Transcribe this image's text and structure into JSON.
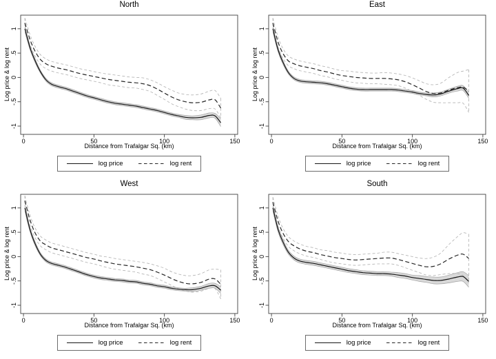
{
  "figure": {
    "background": "#ffffff"
  },
  "colors": {
    "frame": "#3f3f3f",
    "tick": "#3f3f3f",
    "text": "#000000",
    "price_line": "#151515",
    "price_band_fill": "#d9d9d9",
    "price_band_edge": "#a3a3a3",
    "rent_line": "#232323",
    "rent_ci": "#b3b3b3",
    "legend_border": "#6b6b6b",
    "background": "#ffffff"
  },
  "legend": {
    "price_label": "log price",
    "rent_label": "log rent"
  },
  "axes": {
    "xlabel": "Distance from Trafalgar Sq. (km)",
    "ylabel": "Log price & log rent",
    "x_tick_labels": [
      "0",
      "50",
      "100",
      "150"
    ],
    "y_tick_labels": [
      "-1",
      "-.5",
      "0",
      ".5",
      "1"
    ]
  },
  "chart_data": [
    {
      "type": "line",
      "title": "North",
      "xlabel": "Distance from Trafalgar Sq. (km)",
      "ylabel": "Log price & log rent",
      "xlim": [
        -2,
        152
      ],
      "ylim": [
        -1.17,
        1.28
      ],
      "x_ticks": [
        0,
        50,
        100,
        150
      ],
      "x_tick_labels": [
        "0",
        "50",
        "100",
        "150"
      ],
      "y_ticks": [
        -1,
        -0.5,
        0,
        0.5,
        1
      ],
      "y_tick_labels": [
        "-1",
        "-.5",
        "0",
        ".5",
        "1"
      ],
      "grid": false,
      "legend_position": "bottom",
      "x": [
        1,
        3,
        5,
        8,
        12,
        16,
        20,
        25,
        30,
        35,
        40,
        45,
        50,
        55,
        60,
        65,
        70,
        75,
        80,
        85,
        90,
        95,
        100,
        105,
        110,
        115,
        120,
        126,
        132,
        136,
        140
      ],
      "series": [
        {
          "name": "log price",
          "style": "solid",
          "values": [
            1.0,
            0.78,
            0.58,
            0.36,
            0.12,
            -0.05,
            -0.14,
            -0.19,
            -0.23,
            -0.28,
            -0.33,
            -0.38,
            -0.42,
            -0.46,
            -0.5,
            -0.53,
            -0.55,
            -0.57,
            -0.59,
            -0.62,
            -0.65,
            -0.68,
            -0.72,
            -0.76,
            -0.79,
            -0.82,
            -0.83,
            -0.82,
            -0.78,
            -0.79,
            -0.93
          ],
          "ci_halfwidth": [
            0.07,
            0.05,
            0.04,
            0.04,
            0.03,
            0.03,
            0.03,
            0.03,
            0.03,
            0.03,
            0.03,
            0.03,
            0.03,
            0.03,
            0.03,
            0.03,
            0.03,
            0.03,
            0.03,
            0.03,
            0.03,
            0.03,
            0.03,
            0.03,
            0.03,
            0.04,
            0.04,
            0.05,
            0.05,
            0.05,
            0.08
          ]
        },
        {
          "name": "log rent",
          "style": "dashed",
          "values": [
            1.12,
            0.93,
            0.75,
            0.55,
            0.37,
            0.28,
            0.23,
            0.19,
            0.16,
            0.12,
            0.08,
            0.05,
            0.02,
            -0.01,
            -0.04,
            -0.06,
            -0.08,
            -0.1,
            -0.11,
            -0.13,
            -0.17,
            -0.24,
            -0.32,
            -0.4,
            -0.46,
            -0.5,
            -0.52,
            -0.51,
            -0.46,
            -0.46,
            -0.63
          ],
          "ci_halfwidth": [
            0.1,
            0.1,
            0.1,
            0.1,
            0.1,
            0.1,
            0.1,
            0.1,
            0.1,
            0.1,
            0.1,
            0.1,
            0.1,
            0.1,
            0.11,
            0.11,
            0.11,
            0.11,
            0.11,
            0.12,
            0.12,
            0.13,
            0.13,
            0.14,
            0.14,
            0.15,
            0.16,
            0.17,
            0.18,
            0.19,
            0.2
          ]
        }
      ]
    },
    {
      "type": "line",
      "title": "East",
      "xlabel": "Distance from Trafalgar Sq. (km)",
      "ylabel": "Log price & log rent",
      "xlim": [
        -2,
        152
      ],
      "ylim": [
        -1.17,
        1.28
      ],
      "x_ticks": [
        0,
        50,
        100,
        150
      ],
      "x_tick_labels": [
        "0",
        "50",
        "100",
        "150"
      ],
      "y_ticks": [
        -1,
        -0.5,
        0,
        0.5,
        1
      ],
      "y_tick_labels": [
        "-1",
        "-.5",
        "0",
        ".5",
        "1"
      ],
      "grid": false,
      "legend_position": "bottom",
      "x": [
        1,
        3,
        5,
        8,
        12,
        16,
        20,
        25,
        30,
        35,
        40,
        45,
        50,
        55,
        60,
        65,
        70,
        75,
        80,
        85,
        90,
        95,
        100,
        105,
        110,
        115,
        120,
        126,
        132,
        136,
        140
      ],
      "series": [
        {
          "name": "log price",
          "style": "solid",
          "values": [
            1.0,
            0.75,
            0.54,
            0.32,
            0.1,
            -0.02,
            -0.07,
            -0.09,
            -0.1,
            -0.11,
            -0.13,
            -0.16,
            -0.19,
            -0.22,
            -0.24,
            -0.25,
            -0.25,
            -0.25,
            -0.25,
            -0.25,
            -0.26,
            -0.28,
            -0.3,
            -0.33,
            -0.35,
            -0.36,
            -0.34,
            -0.28,
            -0.23,
            -0.22,
            -0.37
          ],
          "ci_halfwidth": [
            0.07,
            0.05,
            0.04,
            0.04,
            0.03,
            0.03,
            0.03,
            0.03,
            0.03,
            0.03,
            0.03,
            0.03,
            0.03,
            0.03,
            0.03,
            0.03,
            0.03,
            0.03,
            0.03,
            0.03,
            0.03,
            0.03,
            0.03,
            0.03,
            0.03,
            0.04,
            0.04,
            0.04,
            0.05,
            0.05,
            0.06
          ]
        },
        {
          "name": "log rent",
          "style": "dashed",
          "values": [
            1.12,
            0.9,
            0.7,
            0.5,
            0.34,
            0.28,
            0.24,
            0.21,
            0.18,
            0.14,
            0.11,
            0.07,
            0.04,
            0.02,
            0.0,
            -0.01,
            -0.02,
            -0.02,
            -0.02,
            -0.03,
            -0.05,
            -0.09,
            -0.15,
            -0.22,
            -0.29,
            -0.33,
            -0.32,
            -0.26,
            -0.21,
            -0.2,
            -0.28
          ],
          "ci_halfwidth": [
            0.1,
            0.1,
            0.1,
            0.1,
            0.1,
            0.1,
            0.1,
            0.1,
            0.1,
            0.1,
            0.1,
            0.1,
            0.1,
            0.11,
            0.11,
            0.11,
            0.11,
            0.11,
            0.12,
            0.12,
            0.12,
            0.13,
            0.14,
            0.15,
            0.16,
            0.18,
            0.2,
            0.26,
            0.31,
            0.33,
            0.44
          ]
        }
      ]
    },
    {
      "type": "line",
      "title": "West",
      "xlabel": "Distance from Trafalgar Sq. (km)",
      "ylabel": "Log price & log rent",
      "xlim": [
        -2,
        152
      ],
      "ylim": [
        -1.17,
        1.28
      ],
      "x_ticks": [
        0,
        50,
        100,
        150
      ],
      "x_tick_labels": [
        "0",
        "50",
        "100",
        "150"
      ],
      "y_ticks": [
        -1,
        -0.5,
        0,
        0.5,
        1
      ],
      "y_tick_labels": [
        "-1",
        "-.5",
        "0",
        ".5",
        "1"
      ],
      "grid": false,
      "legend_position": "bottom",
      "x": [
        1,
        3,
        5,
        8,
        12,
        16,
        20,
        25,
        30,
        35,
        40,
        45,
        50,
        55,
        60,
        65,
        70,
        75,
        80,
        85,
        90,
        95,
        100,
        105,
        110,
        115,
        120,
        126,
        132,
        136,
        140
      ],
      "series": [
        {
          "name": "log price",
          "style": "solid",
          "values": [
            1.0,
            0.74,
            0.52,
            0.28,
            0.05,
            -0.08,
            -0.14,
            -0.18,
            -0.22,
            -0.27,
            -0.32,
            -0.37,
            -0.41,
            -0.44,
            -0.46,
            -0.48,
            -0.49,
            -0.51,
            -0.52,
            -0.55,
            -0.57,
            -0.6,
            -0.62,
            -0.65,
            -0.67,
            -0.68,
            -0.68,
            -0.65,
            -0.6,
            -0.6,
            -0.69
          ],
          "ci_halfwidth": [
            0.07,
            0.05,
            0.04,
            0.04,
            0.03,
            0.03,
            0.03,
            0.03,
            0.03,
            0.03,
            0.03,
            0.03,
            0.03,
            0.03,
            0.03,
            0.03,
            0.03,
            0.03,
            0.03,
            0.03,
            0.03,
            0.03,
            0.03,
            0.03,
            0.03,
            0.03,
            0.04,
            0.04,
            0.05,
            0.05,
            0.07
          ]
        },
        {
          "name": "log rent",
          "style": "dashed",
          "values": [
            1.15,
            0.92,
            0.72,
            0.5,
            0.32,
            0.24,
            0.18,
            0.14,
            0.1,
            0.06,
            0.02,
            -0.02,
            -0.05,
            -0.09,
            -0.12,
            -0.15,
            -0.17,
            -0.19,
            -0.21,
            -0.24,
            -0.27,
            -0.32,
            -0.38,
            -0.45,
            -0.51,
            -0.55,
            -0.56,
            -0.53,
            -0.46,
            -0.46,
            -0.57
          ],
          "ci_halfwidth": [
            0.1,
            0.1,
            0.1,
            0.1,
            0.1,
            0.1,
            0.1,
            0.1,
            0.1,
            0.1,
            0.1,
            0.1,
            0.1,
            0.1,
            0.11,
            0.11,
            0.11,
            0.11,
            0.11,
            0.12,
            0.12,
            0.13,
            0.14,
            0.14,
            0.15,
            0.16,
            0.17,
            0.18,
            0.19,
            0.2,
            0.3
          ]
        }
      ]
    },
    {
      "type": "line",
      "title": "South",
      "xlabel": "Distance from Trafalgar Sq. (km)",
      "ylabel": "Log price & log rent",
      "xlim": [
        -2,
        152
      ],
      "ylim": [
        -1.17,
        1.28
      ],
      "x_ticks": [
        0,
        50,
        100,
        150
      ],
      "x_tick_labels": [
        "0",
        "50",
        "100",
        "150"
      ],
      "y_ticks": [
        -1,
        -0.5,
        0,
        0.5,
        1
      ],
      "y_tick_labels": [
        "-1",
        "-.5",
        "0",
        ".5",
        "1"
      ],
      "grid": false,
      "legend_position": "bottom",
      "x": [
        1,
        3,
        5,
        8,
        12,
        16,
        20,
        25,
        30,
        35,
        40,
        45,
        50,
        55,
        60,
        65,
        70,
        75,
        80,
        85,
        90,
        95,
        100,
        105,
        110,
        115,
        120,
        126,
        132,
        136,
        140
      ],
      "series": [
        {
          "name": "log price",
          "style": "solid",
          "values": [
            1.0,
            0.75,
            0.53,
            0.31,
            0.09,
            -0.03,
            -0.09,
            -0.12,
            -0.14,
            -0.17,
            -0.2,
            -0.23,
            -0.26,
            -0.29,
            -0.31,
            -0.33,
            -0.34,
            -0.35,
            -0.35,
            -0.36,
            -0.38,
            -0.4,
            -0.43,
            -0.45,
            -0.47,
            -0.49,
            -0.49,
            -0.46,
            -0.42,
            -0.41,
            -0.51
          ],
          "ci_halfwidth": [
            0.07,
            0.06,
            0.05,
            0.05,
            0.04,
            0.04,
            0.04,
            0.04,
            0.04,
            0.04,
            0.04,
            0.04,
            0.04,
            0.04,
            0.04,
            0.04,
            0.04,
            0.04,
            0.04,
            0.04,
            0.05,
            0.05,
            0.05,
            0.06,
            0.06,
            0.07,
            0.07,
            0.08,
            0.09,
            0.1,
            0.12
          ]
        },
        {
          "name": "log rent",
          "style": "dashed",
          "values": [
            1.12,
            0.9,
            0.7,
            0.49,
            0.31,
            0.22,
            0.16,
            0.11,
            0.08,
            0.04,
            0.01,
            -0.02,
            -0.04,
            -0.06,
            -0.07,
            -0.06,
            -0.05,
            -0.04,
            -0.03,
            -0.03,
            -0.06,
            -0.1,
            -0.14,
            -0.18,
            -0.21,
            -0.2,
            -0.15,
            -0.05,
            0.03,
            0.05,
            -0.04
          ],
          "ci_halfwidth": [
            0.1,
            0.1,
            0.1,
            0.1,
            0.1,
            0.1,
            0.1,
            0.1,
            0.1,
            0.1,
            0.11,
            0.11,
            0.11,
            0.11,
            0.11,
            0.11,
            0.11,
            0.11,
            0.12,
            0.12,
            0.12,
            0.13,
            0.14,
            0.15,
            0.17,
            0.19,
            0.22,
            0.3,
            0.38,
            0.44,
            0.5
          ]
        }
      ]
    }
  ]
}
